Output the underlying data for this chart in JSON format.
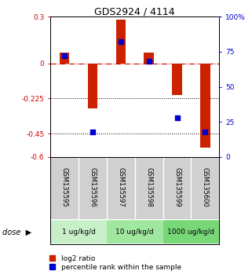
{
  "title": "GDS2924 / 4114",
  "samples": [
    "GSM135595",
    "GSM135596",
    "GSM135597",
    "GSM135598",
    "GSM135599",
    "GSM135600"
  ],
  "log2_ratio": [
    0.07,
    -0.29,
    0.28,
    0.07,
    -0.2,
    -0.54
  ],
  "percentile_rank": [
    72,
    18,
    82,
    68,
    28,
    18
  ],
  "dose_groups": [
    {
      "label": "1 ug/kg/d",
      "samples": [
        0,
        1
      ],
      "color": "#c8f0c8"
    },
    {
      "label": "10 ug/kg/d",
      "samples": [
        2,
        3
      ],
      "color": "#a0e8a0"
    },
    {
      "label": "1000 ug/kg/d",
      "samples": [
        4,
        5
      ],
      "color": "#78d878"
    }
  ],
  "ylim_left": [
    -0.6,
    0.3
  ],
  "ylim_right": [
    0,
    100
  ],
  "yticks_left": [
    0.3,
    0,
    -0.225,
    -0.45,
    -0.6
  ],
  "ytick_labels_left": [
    "0.3",
    "0",
    "-0.225",
    "-0.45",
    "-0.6"
  ],
  "yticks_right": [
    100,
    75,
    50,
    25,
    0
  ],
  "hline_zero_color": "#cc0000",
  "hline_dotted_values": [
    -0.225,
    -0.45
  ],
  "bar_color": "#cc2200",
  "dot_color": "#0000cc",
  "bar_width": 0.35,
  "dot_size": 18,
  "legend_red_label": "log2 ratio",
  "legend_blue_label": "percentile rank within the sample",
  "dose_label": "dose",
  "background_color": "#ffffff",
  "plot_bg": "#ffffff",
  "sample_bg": "#d0d0d0"
}
